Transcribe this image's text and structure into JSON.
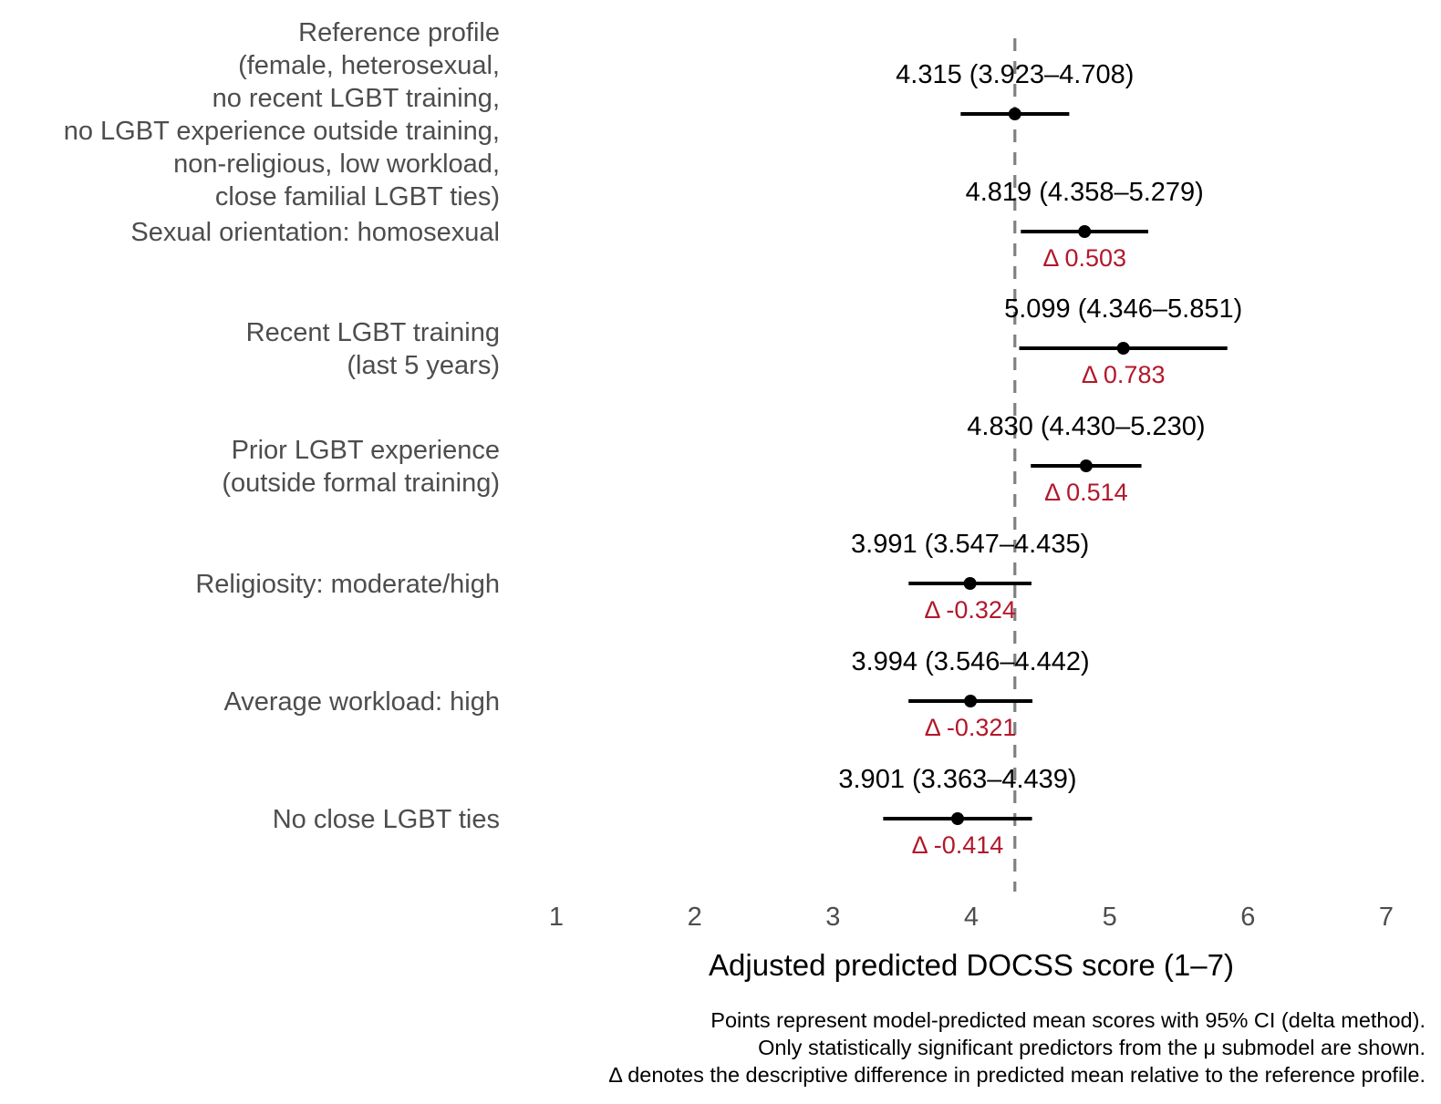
{
  "chart_data": {
    "type": "forest",
    "title": "",
    "xlabel": "Adjusted predicted DOCSS score (1–7)",
    "ylabel": "",
    "xlim": [
      1,
      7
    ],
    "x_ticks": [
      "1",
      "2",
      "3",
      "4",
      "5",
      "6",
      "7"
    ],
    "x_tick_values": [
      1,
      2,
      3,
      4,
      5,
      6,
      7
    ],
    "grid": false,
    "reference_line": {
      "value": 4.315,
      "style": "dashed",
      "color": "#808080"
    },
    "colors": {
      "point": "#000000",
      "ci": "#000000",
      "delta": "#b2182b",
      "label": "#4d4d4d"
    },
    "rows": [
      {
        "label_lines": [
          "Reference profile",
          "(female, heterosexual,",
          "no recent LGBT training,",
          "no LGBT experience outside training,",
          "non-religious, low workload,",
          "close familial LGBT ties)"
        ],
        "estimate": 4.315,
        "ci_low": 3.923,
        "ci_high": 4.708,
        "estimate_label": "4.315 (3.923–4.708)",
        "delta": null,
        "delta_label": ""
      },
      {
        "label_lines": [
          "Sexual orientation: homosexual"
        ],
        "estimate": 4.819,
        "ci_low": 4.358,
        "ci_high": 5.279,
        "estimate_label": "4.819 (4.358–5.279)",
        "delta": 0.503,
        "delta_label": "Δ 0.503"
      },
      {
        "label_lines": [
          "Recent LGBT training",
          "(last 5 years)"
        ],
        "estimate": 5.099,
        "ci_low": 4.346,
        "ci_high": 5.851,
        "estimate_label": "5.099 (4.346–5.851)",
        "delta": 0.783,
        "delta_label": "Δ 0.783"
      },
      {
        "label_lines": [
          "Prior LGBT experience",
          "(outside formal training)"
        ],
        "estimate": 4.83,
        "ci_low": 4.43,
        "ci_high": 5.23,
        "estimate_label": "4.830 (4.430–5.230)",
        "delta": 0.514,
        "delta_label": "Δ 0.514"
      },
      {
        "label_lines": [
          "Religiosity: moderate/high"
        ],
        "estimate": 3.991,
        "ci_low": 3.547,
        "ci_high": 4.435,
        "estimate_label": "3.991 (3.547–4.435)",
        "delta": -0.324,
        "delta_label": "Δ -0.324"
      },
      {
        "label_lines": [
          "Average workload: high"
        ],
        "estimate": 3.994,
        "ci_low": 3.546,
        "ci_high": 4.442,
        "estimate_label": "3.994 (3.546–4.442)",
        "delta": -0.321,
        "delta_label": "Δ -0.321"
      },
      {
        "label_lines": [
          "No close LGBT ties"
        ],
        "estimate": 3.901,
        "ci_low": 3.363,
        "ci_high": 4.439,
        "estimate_label": "3.901 (3.363–4.439)",
        "delta": -0.414,
        "delta_label": "Δ -0.414"
      }
    ],
    "caption_lines": [
      "Points represent model-predicted mean scores with 95% CI (delta method).",
      "Only statistically significant predictors from the μ submodel are shown.",
      "Δ denotes the descriptive difference in predicted mean relative to the reference profile."
    ]
  }
}
